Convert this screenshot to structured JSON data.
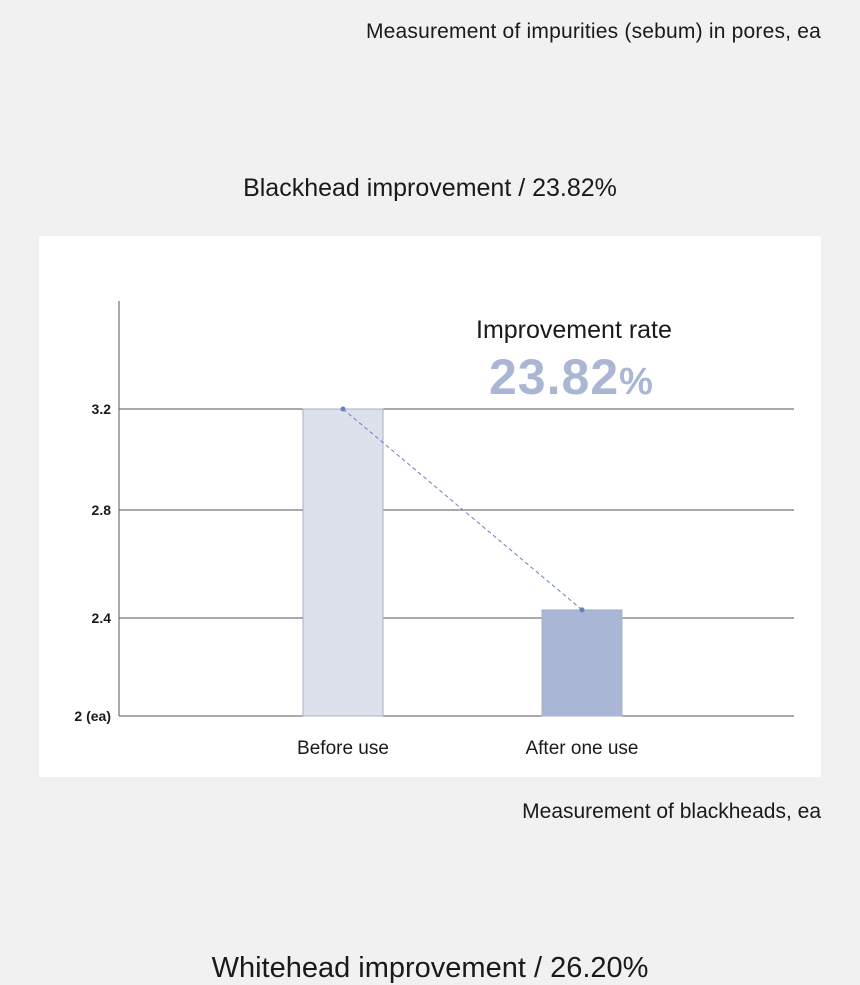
{
  "header": {
    "caption": "Measurement of impurities (sebum) in pores, ea"
  },
  "section": {
    "title": "Blackhead improvement / 23.82%"
  },
  "improvement": {
    "label": "Improvement rate",
    "value": "23.82",
    "unit": "%"
  },
  "chart_data": {
    "type": "bar",
    "categories": [
      "Before use",
      "After one use"
    ],
    "values": [
      3.2,
      2.43
    ],
    "yticks": [
      {
        "value": 2.0,
        "label": "2 (ea)"
      },
      {
        "value": 2.4,
        "label": "2.4"
      },
      {
        "value": 2.8,
        "label": "2.8"
      },
      {
        "value": 3.2,
        "label": "3.2"
      }
    ],
    "ylim": [
      2.0,
      3.6
    ],
    "grid": true,
    "colors": {
      "before": "#dde1ec",
      "after": "#aab6d5",
      "line": "#6a7fbd"
    }
  },
  "footer": {
    "caption": "Measurement of blackheads, ea"
  },
  "next_section": {
    "title": "Whitehead improvement / 26.20%"
  }
}
